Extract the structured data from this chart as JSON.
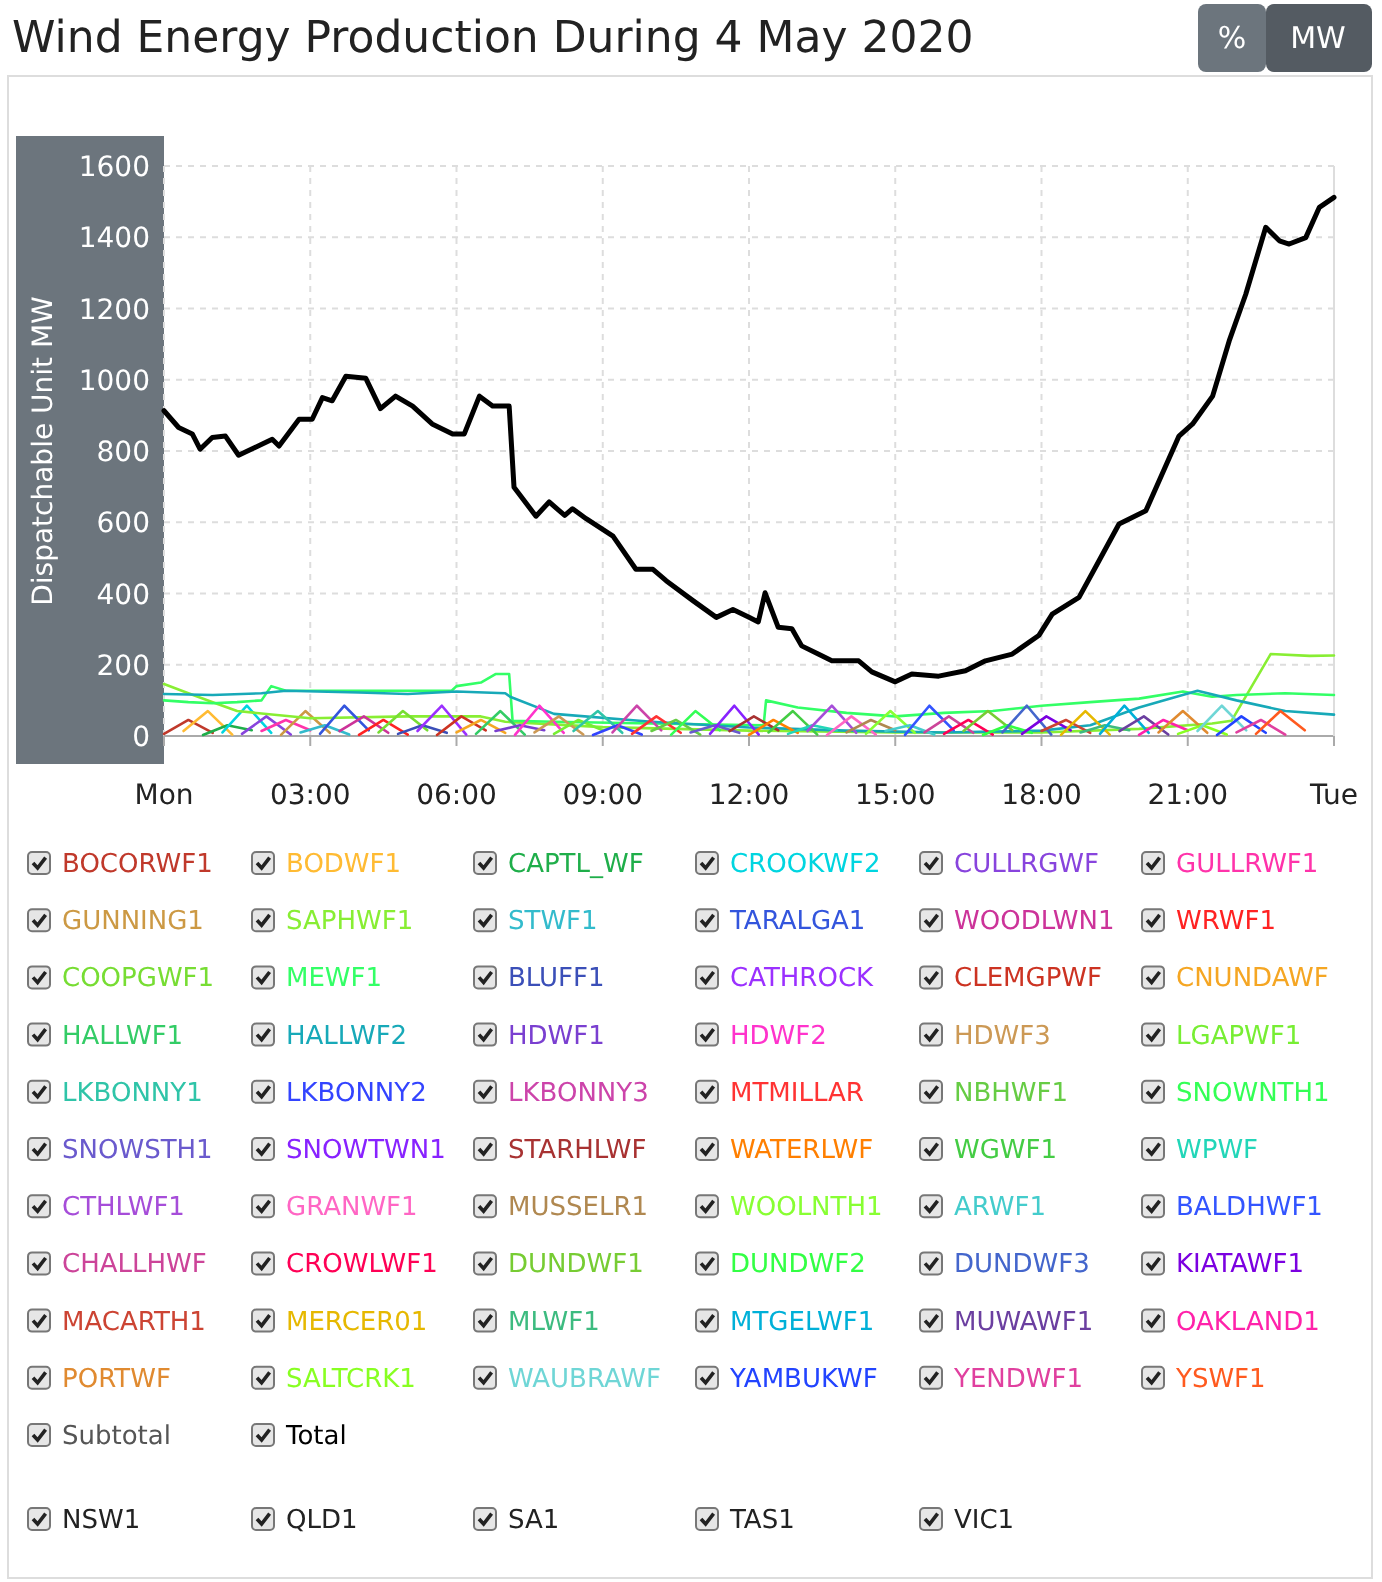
{
  "chart_data": {
    "type": "line",
    "title": "Wind Energy Production During 4 May 2020",
    "ylabel": "Dispatchable Unit MW",
    "xlim": [
      0,
      24
    ],
    "xticks": [
      {
        "value": 0,
        "label": "Mon"
      },
      {
        "value": 3,
        "label": "03:00"
      },
      {
        "value": 6,
        "label": "06:00"
      },
      {
        "value": 9,
        "label": "09:00"
      },
      {
        "value": 12,
        "label": "12:00"
      },
      {
        "value": 15,
        "label": "15:00"
      },
      {
        "value": 18,
        "label": "18:00"
      },
      {
        "value": 21,
        "label": "21:00"
      },
      {
        "value": 24,
        "label": "Tue"
      }
    ],
    "ylim": [
      0,
      1600
    ],
    "yticks": [
      0,
      200,
      400,
      600,
      800,
      1000,
      1200,
      1400,
      1600
    ],
    "grid": true,
    "legend": "bottom",
    "marker": "none",
    "line_style": "solid",
    "annotations": [
      "%",
      "MW",
      "Subtotal",
      "NSW1",
      "QLD1",
      "SA1",
      "TAS1",
      "VIC1"
    ],
    "series": [
      {
        "name": "BOCORWF1",
        "color": "#c0392b",
        "x": [
          0,
          0.5,
          1
        ],
        "values": [
          6,
          45,
          9
        ]
      },
      {
        "name": "BODWF1",
        "color": "#ffbb33",
        "x": [
          0.4,
          0.9,
          1.4
        ],
        "values": [
          14,
          70,
          4
        ]
      },
      {
        "name": "CAPTL_WF",
        "color": "#1fae4a",
        "x": [
          0.8,
          1.3,
          1.8
        ],
        "values": [
          3,
          30,
          16
        ]
      },
      {
        "name": "CROOKWF2",
        "color": "#00d5e0",
        "x": [
          1.2,
          1.7,
          2.2
        ],
        "values": [
          10,
          85,
          9
        ]
      },
      {
        "name": "CULLRGWF",
        "color": "#8844dd",
        "x": [
          1.6,
          2.1,
          2.6
        ],
        "values": [
          6,
          55,
          4
        ]
      },
      {
        "name": "GULLRWF1",
        "color": "#ff33aa",
        "x": [
          2,
          2.5,
          3
        ],
        "values": [
          14,
          45,
          16
        ]
      },
      {
        "name": "GUNNING1",
        "color": "#cc9944",
        "x": [
          2.4,
          2.9,
          3.4
        ],
        "values": [
          3,
          70,
          9
        ]
      },
      {
        "name": "SAPHWF1",
        "color": "#88ee33",
        "x": [
          0,
          0.5,
          1,
          1.5,
          3,
          5,
          6.5,
          7,
          9,
          12,
          15,
          18,
          20,
          21.5,
          21.9,
          22.7,
          23.5,
          24
        ],
        "values": [
          146,
          120,
          95,
          70,
          50,
          55,
          55,
          40,
          25,
          15,
          10,
          10,
          20,
          35,
          43,
          230,
          225,
          226
        ]
      },
      {
        "name": "STWF1",
        "color": "#33bbcc",
        "x": [
          2.8,
          3.3,
          3.8
        ],
        "values": [
          10,
          30,
          4
        ]
      },
      {
        "name": "TARALGA1",
        "color": "#3355dd",
        "x": [
          3.2,
          3.7,
          4.2
        ],
        "values": [
          6,
          85,
          16
        ]
      },
      {
        "name": "WOODLWN1",
        "color": "#cc3399",
        "x": [
          3.6,
          4.1,
          4.6
        ],
        "values": [
          14,
          55,
          9
        ]
      },
      {
        "name": "WRWF1",
        "color": "#ff2222",
        "x": [
          4,
          4.5,
          5
        ],
        "values": [
          3,
          45,
          4
        ]
      },
      {
        "name": "COOPGWF1",
        "color": "#77dd33",
        "x": [
          4.4,
          4.9,
          5.4
        ],
        "values": [
          10,
          70,
          16
        ]
      },
      {
        "name": "MEWF1",
        "color": "#33ff66",
        "x": [
          0,
          0.5,
          1,
          1.5,
          2,
          2.2,
          2.5,
          3,
          4,
          5,
          5.9,
          6,
          6.5,
          6.8,
          7.08,
          7.15,
          8,
          10,
          12.3,
          12.35,
          13,
          14,
          15,
          16,
          17,
          18,
          19,
          20,
          20.9,
          21.5,
          22,
          23,
          24
        ],
        "values": [
          100,
          95,
          92,
          95,
          100,
          140,
          127,
          127,
          127,
          127,
          127,
          140,
          150,
          174,
          174,
          43,
          40,
          35,
          30,
          100,
          80,
          65,
          55,
          65,
          70,
          85,
          95,
          105,
          125,
          110,
          115,
          120,
          115
        ]
      },
      {
        "name": "BLUFF1",
        "color": "#3b4fb8",
        "x": [
          4.8,
          5.3,
          5.8
        ],
        "values": [
          6,
          30,
          9
        ]
      },
      {
        "name": "CATHROCK",
        "color": "#9b30ff",
        "x": [
          5.2,
          5.7,
          6.2
        ],
        "values": [
          14,
          85,
          4
        ]
      },
      {
        "name": "CLEMGPWF",
        "color": "#cc3322",
        "x": [
          5.6,
          6.1,
          6.6
        ],
        "values": [
          3,
          55,
          16
        ]
      },
      {
        "name": "CNUNDAWF",
        "color": "#f5a623",
        "x": [
          6,
          6.5,
          7
        ],
        "values": [
          10,
          45,
          9
        ]
      },
      {
        "name": "HALLWF1",
        "color": "#33cc66",
        "x": [
          6.4,
          6.9,
          7.4
        ],
        "values": [
          6,
          70,
          4
        ]
      },
      {
        "name": "HALLWF2",
        "color": "#17a9b8",
        "x": [
          0,
          1,
          2,
          2.5,
          4,
          5,
          6,
          7,
          7.1,
          8,
          10,
          12,
          14,
          16,
          18,
          19,
          20,
          21.2,
          22,
          23,
          24
        ],
        "values": [
          118,
          115,
          120,
          127,
          122,
          118,
          125,
          120,
          110,
          62,
          40,
          24,
          15,
          10,
          15,
          30,
          80,
          127,
          100,
          70,
          60
        ]
      },
      {
        "name": "HDWF1",
        "color": "#7a3fd0",
        "x": [
          6.8,
          7.3,
          7.8
        ],
        "values": [
          14,
          30,
          16
        ]
      },
      {
        "name": "HDWF2",
        "color": "#ff33cc",
        "x": [
          7.2,
          7.7,
          8.2
        ],
        "values": [
          3,
          85,
          9
        ]
      },
      {
        "name": "HDWF3",
        "color": "#cc9955",
        "x": [
          7.6,
          8.1,
          8.6
        ],
        "values": [
          10,
          55,
          4
        ]
      },
      {
        "name": "LGAPWF1",
        "color": "#77ee33",
        "x": [
          8,
          8.5,
          9
        ],
        "values": [
          6,
          45,
          16
        ]
      },
      {
        "name": "LKBONNY1",
        "color": "#2fc4a8",
        "x": [
          8.4,
          8.9,
          9.4
        ],
        "values": [
          14,
          70,
          9
        ]
      },
      {
        "name": "LKBONNY2",
        "color": "#3344ff",
        "x": [
          8.8,
          9.3,
          9.8
        ],
        "values": [
          3,
          30,
          4
        ]
      },
      {
        "name": "LKBONNY3",
        "color": "#cc44aa",
        "x": [
          9.2,
          9.7,
          10.2
        ],
        "values": [
          10,
          85,
          16
        ]
      },
      {
        "name": "MTMILLAR",
        "color": "#ff3333",
        "x": [
          9.6,
          10.1,
          10.6
        ],
        "values": [
          6,
          55,
          9
        ]
      },
      {
        "name": "NBHWF1",
        "color": "#66cc44",
        "x": [
          10,
          10.5,
          11
        ],
        "values": [
          14,
          45,
          4
        ]
      },
      {
        "name": "SNOWNTH1",
        "color": "#33ff55",
        "x": [
          10.4,
          10.9,
          11.4
        ],
        "values": [
          3,
          70,
          16
        ]
      },
      {
        "name": "SNOWSTH1",
        "color": "#6a5acd",
        "x": [
          10.8,
          11.3,
          11.8
        ],
        "values": [
          10,
          30,
          9
        ]
      },
      {
        "name": "SNOWTWN1",
        "color": "#8822ff",
        "x": [
          11.2,
          11.7,
          12.2
        ],
        "values": [
          6,
          85,
          4
        ]
      },
      {
        "name": "STARHLWF",
        "color": "#a83232",
        "x": [
          11.6,
          12.1,
          12.6
        ],
        "values": [
          14,
          55,
          16
        ]
      },
      {
        "name": "WATERLWF",
        "color": "#ff7f00",
        "x": [
          12,
          12.5,
          13
        ],
        "values": [
          3,
          45,
          9
        ]
      },
      {
        "name": "WGWF1",
        "color": "#44cc44",
        "x": [
          12.4,
          12.9,
          13.4
        ],
        "values": [
          10,
          70,
          4
        ]
      },
      {
        "name": "WPWF",
        "color": "#22d6b8",
        "x": [
          12.8,
          13.3,
          13.8
        ],
        "values": [
          6,
          30,
          16
        ]
      },
      {
        "name": "CTHLWF1",
        "color": "#a64dd9",
        "x": [
          13.2,
          13.7,
          14.2
        ],
        "values": [
          14,
          85,
          9
        ]
      },
      {
        "name": "GRANWF1",
        "color": "#ff66c4",
        "x": [
          13.6,
          14.1,
          14.6
        ],
        "values": [
          3,
          55,
          4
        ]
      },
      {
        "name": "MUSSELR1",
        "color": "#b08850",
        "x": [
          14,
          14.5,
          15
        ],
        "values": [
          10,
          45,
          16
        ]
      },
      {
        "name": "WOOLNTH1",
        "color": "#88ff33",
        "x": [
          14.4,
          14.9,
          15.4
        ],
        "values": [
          6,
          70,
          9
        ]
      },
      {
        "name": "ARWF1",
        "color": "#44cccc",
        "x": [
          14.8,
          15.3,
          15.8
        ],
        "values": [
          14,
          30,
          4
        ]
      },
      {
        "name": "BALDHWF1",
        "color": "#3355ff",
        "x": [
          15.2,
          15.7,
          16.2
        ],
        "values": [
          3,
          85,
          16
        ]
      },
      {
        "name": "CHALLHWF",
        "color": "#cc4499",
        "x": [
          15.6,
          16.1,
          16.6
        ],
        "values": [
          10,
          55,
          9
        ]
      },
      {
        "name": "CROWLWF1",
        "color": "#ff0055",
        "x": [
          16,
          16.5,
          17
        ],
        "values": [
          6,
          45,
          4
        ]
      },
      {
        "name": "DUNDWF1",
        "color": "#77cc33",
        "x": [
          16.4,
          16.9,
          17.4
        ],
        "values": [
          14,
          70,
          16
        ]
      },
      {
        "name": "DUNDWF2",
        "color": "#33ff44",
        "x": [
          16.8,
          17.3,
          17.8
        ],
        "values": [
          3,
          30,
          9
        ]
      },
      {
        "name": "DUNDWF3",
        "color": "#4466cc",
        "x": [
          17.2,
          17.7,
          18.2
        ],
        "values": [
          10,
          85,
          4
        ]
      },
      {
        "name": "KIATAWF1",
        "color": "#7b00e0",
        "x": [
          17.6,
          18.1,
          18.6
        ],
        "values": [
          6,
          55,
          16
        ]
      },
      {
        "name": "MACARTH1",
        "color": "#cc4433",
        "x": [
          18,
          18.5,
          19
        ],
        "values": [
          14,
          45,
          9
        ]
      },
      {
        "name": "MERCER01",
        "color": "#e6b800",
        "x": [
          18.4,
          18.9,
          19.4
        ],
        "values": [
          3,
          70,
          4
        ]
      },
      {
        "name": "MLWF1",
        "color": "#3dbb80",
        "x": [
          18.8,
          19.3,
          19.8
        ],
        "values": [
          10,
          30,
          16
        ]
      },
      {
        "name": "MTGELWF1",
        "color": "#00b0d8",
        "x": [
          19.2,
          19.7,
          20.2
        ],
        "values": [
          6,
          85,
          9
        ]
      },
      {
        "name": "MUWAWF1",
        "color": "#6b3fa0",
        "x": [
          19.6,
          20.1,
          20.6
        ],
        "values": [
          14,
          55,
          4
        ]
      },
      {
        "name": "OAKLAND1",
        "color": "#ff22aa",
        "x": [
          20,
          20.5,
          21
        ],
        "values": [
          3,
          45,
          16
        ]
      },
      {
        "name": "PORTWF",
        "color": "#e08a30",
        "x": [
          20.4,
          20.9,
          21.4
        ],
        "values": [
          10,
          70,
          9
        ]
      },
      {
        "name": "SALTCRK1",
        "color": "#88ff22",
        "x": [
          20.8,
          21.3,
          21.8
        ],
        "values": [
          6,
          30,
          4
        ]
      },
      {
        "name": "WAUBRAWF",
        "color": "#6fd6d6",
        "x": [
          21.2,
          21.7,
          22.2
        ],
        "values": [
          14,
          85,
          16
        ]
      },
      {
        "name": "YAMBUKWF",
        "color": "#2244ff",
        "x": [
          21.6,
          22.1,
          22.6
        ],
        "values": [
          3,
          55,
          9
        ]
      },
      {
        "name": "YENDWF1",
        "color": "#e0409f",
        "x": [
          22,
          22.5,
          23
        ],
        "values": [
          10,
          45,
          4
        ]
      },
      {
        "name": "YSWF1",
        "color": "#ff5a1f",
        "x": [
          22.4,
          22.9,
          23.4
        ],
        "values": [
          6,
          70,
          16
        ]
      },
      {
        "name": "Total",
        "color": "#000000",
        "x": [
          0,
          0.3,
          0.58,
          0.74,
          0.99,
          1.26,
          1.53,
          1.81,
          2.22,
          2.36,
          2.77,
          3.04,
          3.25,
          3.45,
          3.73,
          4.14,
          4.44,
          4.75,
          5.1,
          5.5,
          5.92,
          6.16,
          6.47,
          6.74,
          7.08,
          7.18,
          7.63,
          7.9,
          8.22,
          8.38,
          8.66,
          9.21,
          9.68,
          10.03,
          10.3,
          10.85,
          11.33,
          11.67,
          12,
          12.19,
          12.33,
          12.6,
          12.88,
          13.08,
          13.42,
          13.7,
          14.25,
          14.52,
          15,
          15.34,
          15.89,
          16.44,
          16.85,
          17.4,
          17.95,
          18.22,
          18.77,
          19.18,
          19.59,
          20.14,
          20.82,
          21.1,
          21.51,
          21.85,
          22.19,
          22.6,
          22.88,
          23.08,
          23.42,
          23.7,
          24
        ],
        "values": [
          913,
          866,
          848,
          805,
          838,
          842,
          788,
          806,
          833,
          814,
          889,
          889,
          950,
          941,
          1010,
          1004,
          919,
          954,
          926,
          876,
          848,
          848,
          954,
          926,
          926,
          698,
          617,
          657,
          619,
          638,
          610,
          561,
          468,
          468,
          436,
          380,
          333,
          355,
          333,
          320,
          402,
          305,
          301,
          253,
          230,
          211,
          211,
          180,
          152,
          174,
          168,
          183,
          211,
          230,
          283,
          342,
          389,
          492,
          595,
          632,
          842,
          876,
          954,
          1109,
          1240,
          1428,
          1390,
          1381,
          1399,
          1484,
          1512
        ]
      }
    ]
  }
}
